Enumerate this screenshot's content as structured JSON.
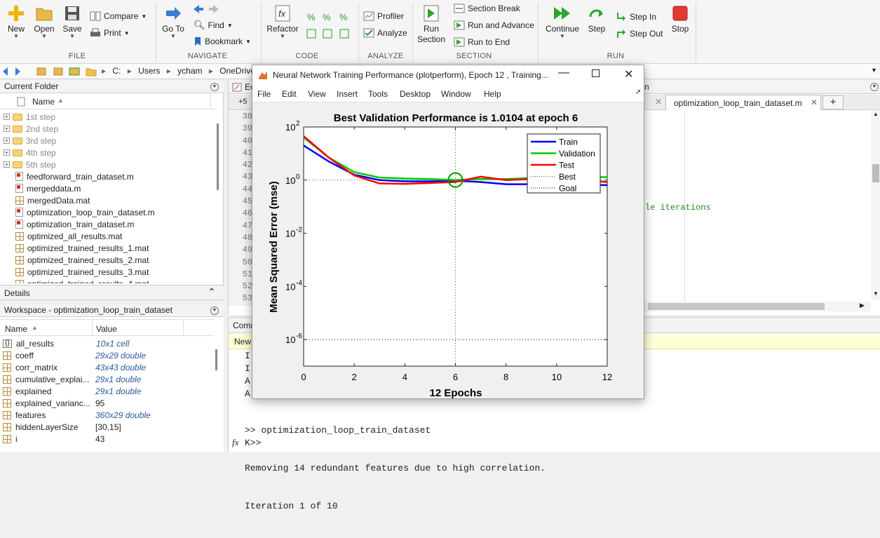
{
  "toolstrip": {
    "file": {
      "new": "New",
      "open": "Open",
      "save": "Save",
      "compare": "Compare",
      "print": "Print",
      "label": "FILE"
    },
    "navigate": {
      "goto": "Go To",
      "find": "Find",
      "bookmark": "Bookmark",
      "label": "NAVIGATE"
    },
    "code": {
      "refactor": "Refactor",
      "label": "CODE"
    },
    "analyze": {
      "profiler": "Profiler",
      "analyze": "Analyze",
      "label": "ANALYZE"
    },
    "section": {
      "run_section": "Run Section",
      "section_break": "Section Break",
      "run_advance": "Run and Advance",
      "run_end": "Run to End",
      "label": "SECTION"
    },
    "run": {
      "continue": "Continue",
      "step": "Step",
      "step_in": "Step In",
      "step_out": "Step Out",
      "stop": "Stop",
      "label": "RUN"
    }
  },
  "address": {
    "segments": [
      "C:",
      "Users",
      "ycham",
      "OneDrive"
    ]
  },
  "current_folder": {
    "title": "Current Folder",
    "column": "Name",
    "items": [
      {
        "name": "1st step",
        "kind": "folder"
      },
      {
        "name": "2nd step",
        "kind": "folder"
      },
      {
        "name": "3rd step",
        "kind": "folder"
      },
      {
        "name": "4th step",
        "kind": "folder"
      },
      {
        "name": "5th step",
        "kind": "folder"
      },
      {
        "name": "feedforward_train_dataset.m",
        "kind": "m"
      },
      {
        "name": "mergeddata.m",
        "kind": "m"
      },
      {
        "name": "mergedData.mat",
        "kind": "mat"
      },
      {
        "name": "optimization_loop_train_dataset.m",
        "kind": "m"
      },
      {
        "name": "optimization_train_dataset.m",
        "kind": "m"
      },
      {
        "name": "optimized_all_results.mat",
        "kind": "mat"
      },
      {
        "name": "optimized_trained_results_1.mat",
        "kind": "mat"
      },
      {
        "name": "optimized_trained_results_2.mat",
        "kind": "mat"
      },
      {
        "name": "optimized_trained_results_3.mat",
        "kind": "mat"
      },
      {
        "name": "optimized_trained_results_4.mat",
        "kind": "mat"
      }
    ],
    "details": "Details"
  },
  "workspace": {
    "title": "Workspace - optimization_loop_train_dataset",
    "col_name": "Name",
    "col_value": "Value",
    "rows": [
      {
        "name": "all_results",
        "value": "10x1 cell",
        "italic": true
      },
      {
        "name": "coeff",
        "value": "29x29 double",
        "italic": true
      },
      {
        "name": "corr_matrix",
        "value": "43x43 double",
        "italic": true
      },
      {
        "name": "cumulative_explai...",
        "value": "29x1 double",
        "italic": true
      },
      {
        "name": "explained",
        "value": "29x1 double",
        "italic": true
      },
      {
        "name": "explained_varianc...",
        "value": "95",
        "italic": false
      },
      {
        "name": "features",
        "value": "360x29 double",
        "italic": true
      },
      {
        "name": "hiddenLayerSize",
        "value": "[30,15]",
        "italic": false
      },
      {
        "name": "i",
        "value": "43",
        "italic": false
      }
    ]
  },
  "editor": {
    "tab_active": "optimization_loop_train_dataset.m",
    "add_tab": "+",
    "line_numbers": [
      "38",
      "39",
      "40",
      "41",
      "42",
      "43",
      "44",
      "45",
      "46",
      "47",
      "48",
      "49",
      "50",
      "51",
      "52",
      "53"
    ],
    "partial_code": "le iterations",
    "header_fragment": "Ec",
    "header_fragment_right": "n",
    "gutter_top": "+5"
  },
  "command_window": {
    "title_fragment": "Comr",
    "banner_fragment": "New",
    "left_fragments": [
      "I",
      "I",
      "A",
      "A"
    ],
    "lines": [
      ">> optimization_loop_train_dataset",
      "Removing 14 redundant features due to high correlation.",
      "Iteration 1 of 10"
    ],
    "prompt": "K>>"
  },
  "figure": {
    "window_title": "Neural Network Training Performance (plotperform), Epoch 12 , Training...",
    "menu": [
      "File",
      "Edit",
      "View",
      "Insert",
      "Tools",
      "Desktop",
      "Window",
      "Help"
    ]
  },
  "chart_data": {
    "type": "line",
    "title": "Best Validation Performance is 1.0104 at epoch 6",
    "xlabel": "12 Epochs",
    "ylabel": "Mean Squared Error  (mse)",
    "xlim": [
      0,
      12
    ],
    "ylim_log10": [
      -7,
      2
    ],
    "yscale": "log",
    "xticks": [
      "0",
      "2",
      "4",
      "6",
      "8",
      "10",
      "12"
    ],
    "yticks": [
      {
        "base": "10",
        "exp": "2",
        "log": 2
      },
      {
        "base": "10",
        "exp": "0",
        "log": 0
      },
      {
        "base": "10",
        "exp": "-2",
        "log": -2
      },
      {
        "base": "10",
        "exp": "-4",
        "log": -4
      },
      {
        "base": "10",
        "exp": "-6",
        "log": -6
      }
    ],
    "legend_position": "top-right",
    "x": [
      0,
      1,
      2,
      3,
      4,
      5,
      6,
      7,
      8,
      9,
      10,
      11,
      12
    ],
    "series": [
      {
        "name": "Train",
        "color": "#0000ff",
        "values": [
          20,
          5,
          1.6,
          1.0,
          0.9,
          0.9,
          0.95,
          0.85,
          0.7,
          0.7,
          0.65,
          0.65,
          0.65
        ]
      },
      {
        "name": "Validation",
        "color": "#00cc00",
        "values": [
          40,
          7,
          2.0,
          1.25,
          1.15,
          1.1,
          1.0104,
          1.1,
          1.1,
          1.2,
          1.2,
          1.3,
          1.3
        ]
      },
      {
        "name": "Test",
        "color": "#ff0000",
        "values": [
          45,
          7,
          1.5,
          0.75,
          0.72,
          0.78,
          0.85,
          1.35,
          1.0,
          1.1,
          1.0,
          1.0,
          0.85
        ]
      }
    ],
    "best": {
      "name": "Best",
      "epoch": 6,
      "value": 1.0104,
      "color": "#009900"
    },
    "goal": {
      "name": "Goal",
      "value": 1e-06
    }
  }
}
